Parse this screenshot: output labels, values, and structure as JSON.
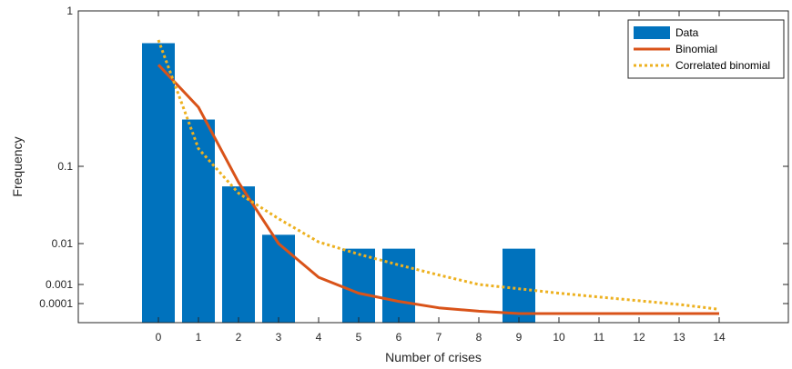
{
  "chart_data": {
    "type": "bar",
    "xlabel": "Number of crises",
    "ylabel": "Frequency",
    "x_ticks": [
      "0",
      "1",
      "2",
      "3",
      "4",
      "5",
      "6",
      "7",
      "8",
      "9",
      "10",
      "11",
      "12",
      "13",
      "14"
    ],
    "y_ticks": [
      {
        "value": 1,
        "label": "1"
      },
      {
        "value": 0.1,
        "label": "0.1"
      },
      {
        "value": 0.01,
        "label": "0.01"
      },
      {
        "value": 0.001,
        "label": "0.001"
      },
      {
        "value": 0.0001,
        "label": "0.0001"
      }
    ],
    "legend_position": "top-right",
    "grid": false,
    "series": [
      {
        "name": "Data",
        "kind": "bar",
        "color": "#0072BD",
        "x": [
          0,
          1,
          2,
          3,
          4,
          5,
          6,
          7,
          8,
          9,
          10,
          11,
          12,
          13,
          14
        ],
        "values": [
          0.62,
          0.2,
          0.055,
          0.013,
          0,
          0.0075,
          0.0075,
          0,
          0,
          0.0075,
          0,
          0,
          0,
          0,
          0
        ]
      },
      {
        "name": "Binomial",
        "kind": "line",
        "color": "#D95319",
        "x": [
          0,
          1,
          2,
          3,
          4,
          5,
          6,
          7,
          8,
          9,
          10,
          11,
          12,
          13,
          14
        ],
        "values": [
          0.45,
          0.24,
          0.062,
          0.01,
          0.0015,
          0.00035,
          0.00013,
          6e-05,
          4e-05,
          3e-05,
          3e-05,
          3e-05,
          3e-05,
          3e-05,
          3e-05
        ]
      },
      {
        "name": "Correlated binomial",
        "kind": "dotted-line",
        "color": "#EDB120",
        "x": [
          0,
          1,
          2,
          3,
          4,
          5,
          6,
          7,
          8,
          9,
          10,
          11,
          12,
          13,
          14
        ],
        "values": [
          0.65,
          0.13,
          0.045,
          0.021,
          0.0105,
          0.0055,
          0.003,
          0.0017,
          0.001,
          0.0006,
          0.00035,
          0.00022,
          0.00014,
          9e-05,
          5e-05
        ]
      }
    ]
  }
}
